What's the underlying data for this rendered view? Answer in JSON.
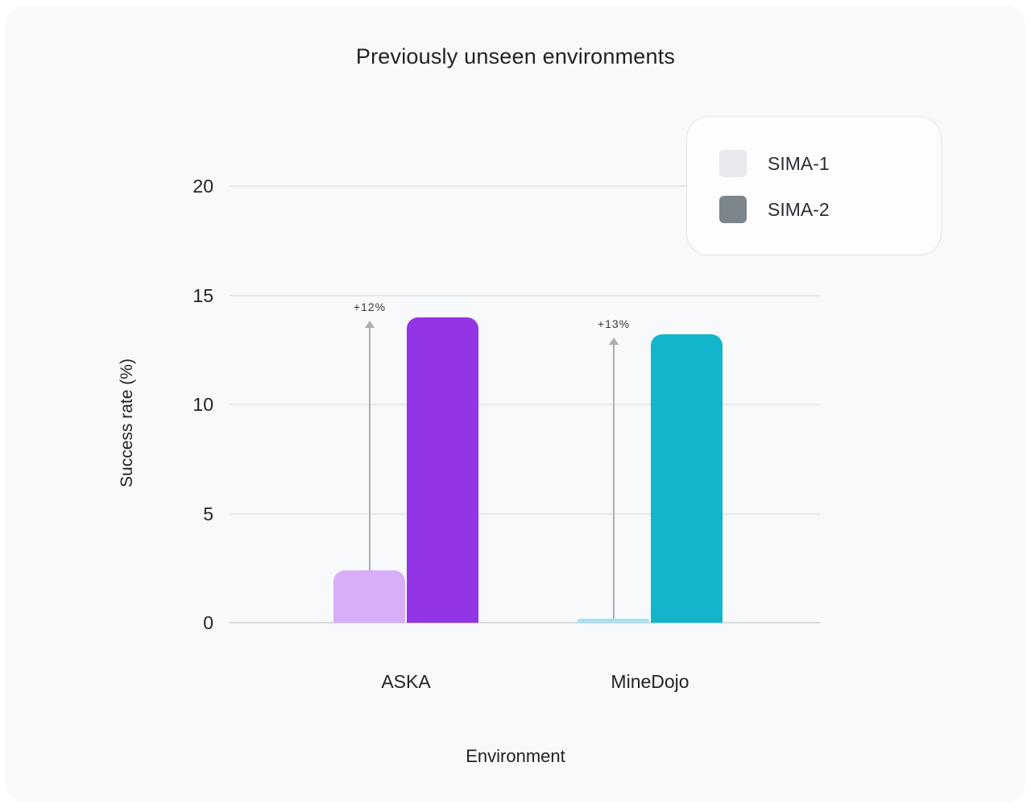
{
  "chart_data": {
    "type": "bar",
    "title": "Previously unseen environments",
    "xlabel": "Environment",
    "ylabel": "Success rate (%)",
    "categories": [
      "ASKA",
      "MineDojo"
    ],
    "series": [
      {
        "name": "SIMA-1",
        "values": [
          2.4,
          0.2
        ],
        "colors": [
          "#d7aef7",
          "#a8e1ee"
        ]
      },
      {
        "name": "SIMA-2",
        "values": [
          14.0,
          13.2
        ],
        "colors": [
          "#9334e6",
          "#12b5cb"
        ]
      }
    ],
    "annotations": [
      {
        "category": "ASKA",
        "label": "+12%"
      },
      {
        "category": "MineDojo",
        "label": "+13%"
      }
    ],
    "yticks": [
      0,
      5,
      10,
      15,
      20
    ],
    "ylim": [
      0,
      20
    ],
    "grid": true,
    "legend": {
      "position": "top-right",
      "items": [
        {
          "label": "SIMA-1",
          "swatch": "#e7e9ec"
        },
        {
          "label": "SIMA-2",
          "swatch": "#7d858c"
        }
      ]
    },
    "colors": {
      "card_background": "#f7f9fb",
      "gridline": "#e5e7ea",
      "baseline": "#d8dadd",
      "annotation_arrow": "#a9aeb4"
    }
  }
}
